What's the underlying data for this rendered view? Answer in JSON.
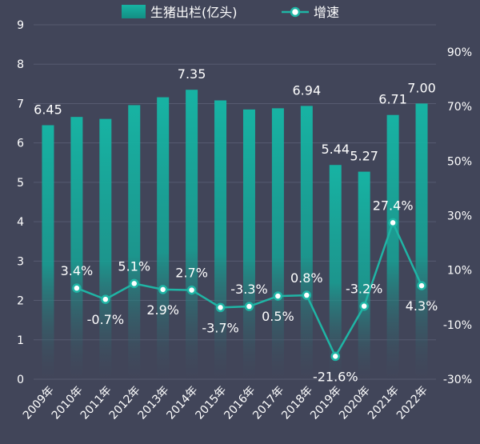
{
  "chart_data": {
    "type": "bar+line",
    "categories": [
      "2009年",
      "2010年",
      "2011年",
      "2012年",
      "2013年",
      "2014年",
      "2015年",
      "2016年",
      "2017年",
      "2018年",
      "2019年",
      "2020年",
      "2021年",
      "2022年"
    ],
    "series": [
      {
        "name": "生猪出栏(亿头)",
        "type": "bar",
        "axis": "left",
        "values": [
          6.45,
          6.66,
          6.61,
          6.96,
          7.16,
          7.35,
          7.08,
          6.85,
          6.88,
          6.94,
          5.44,
          5.27,
          6.71,
          7.0
        ],
        "labels": [
          "6.45",
          null,
          null,
          null,
          null,
          "7.35",
          null,
          null,
          null,
          "6.94",
          "5.44",
          "5.27",
          "6.71",
          "7.00"
        ]
      },
      {
        "name": "增速",
        "type": "line",
        "axis": "right",
        "values": [
          null,
          3.4,
          -0.7,
          5.1,
          2.9,
          2.7,
          -3.7,
          -3.3,
          0.5,
          0.8,
          -21.6,
          -3.2,
          27.4,
          4.3
        ],
        "labels": [
          null,
          "3.4%",
          "-0.7%",
          "5.1%",
          "2.9%",
          "2.7%",
          "-3.7%",
          "-3.3%",
          "0.5%",
          "0.8%",
          "-21.6%",
          "-3.2%",
          "27.4%",
          "4.3%"
        ]
      }
    ],
    "left_axis": {
      "min": 0,
      "max": 9,
      "ticks": [
        "0",
        "1",
        "2",
        "3",
        "4",
        "5",
        "6",
        "7",
        "8",
        "9"
      ]
    },
    "right_axis": {
      "min": -30,
      "max": 100,
      "ticks": [
        "-30%",
        "-10%",
        "10%",
        "30%",
        "50%",
        "70%",
        "90%"
      ]
    },
    "legend": {
      "position": "top",
      "items": [
        "生猪出栏(亿头)",
        "增速"
      ]
    },
    "colors": {
      "bar": "#17b3a3",
      "line": "#1fb5a5",
      "background": "#414559",
      "grid": "#565b70",
      "text": "#ffffff"
    }
  }
}
